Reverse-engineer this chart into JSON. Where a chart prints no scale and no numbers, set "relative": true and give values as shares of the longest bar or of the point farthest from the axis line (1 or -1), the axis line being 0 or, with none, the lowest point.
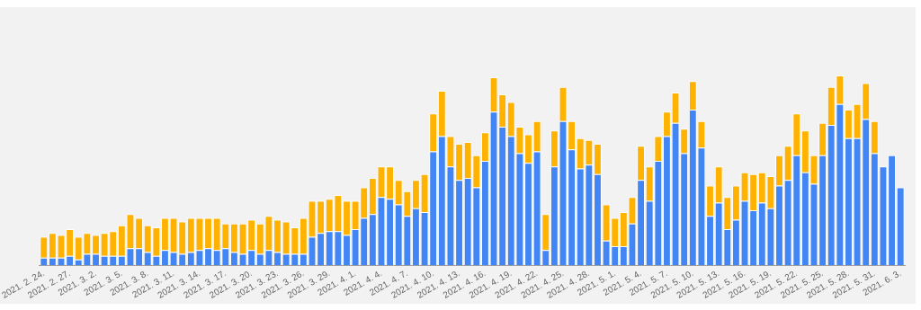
{
  "chart_data": {
    "type": "bar",
    "stacked": true,
    "relative": true,
    "grid": false,
    "legend": false,
    "categories": [
      "2021. 2. 24.",
      null,
      null,
      "2021. 2. 27.",
      null,
      null,
      "2021. 3. 2.",
      null,
      null,
      "2021. 3. 5.",
      null,
      null,
      "2021. 3. 8.",
      null,
      null,
      "2021. 3. 11.",
      null,
      null,
      "2021. 3. 14.",
      null,
      null,
      "2021. 3. 17.",
      null,
      null,
      "2021. 3. 20.",
      null,
      null,
      "2021. 3. 23.",
      null,
      null,
      "2021. 3. 26.",
      null,
      null,
      "2021. 3. 29.",
      null,
      null,
      "2021. 4. 1.",
      null,
      null,
      "2021. 4. 4.",
      null,
      null,
      "2021. 4. 7.",
      null,
      null,
      "2021. 4. 10.",
      null,
      null,
      "2021. 4. 13.",
      null,
      null,
      "2021. 4. 16.",
      null,
      null,
      "2021. 4. 19.",
      null,
      null,
      "2021. 4. 22.",
      null,
      null,
      "2021. 4. 25.",
      null,
      null,
      "2021. 4. 28.",
      null,
      null,
      "2021. 5. 1.",
      null,
      null,
      "2021. 5. 4.",
      null,
      null,
      "2021. 5. 7.",
      null,
      null,
      "2021. 5. 10.",
      null,
      null,
      "2021. 5. 13.",
      null,
      null,
      "2021. 5. 16.",
      null,
      null,
      "2021. 5. 19.",
      null,
      null,
      "2021. 5. 22.",
      null,
      null,
      "2021. 5. 25.",
      null,
      null,
      "2021. 5. 28.",
      null,
      null,
      "2021. 5. 31.",
      null,
      null,
      "2021. 6. 3."
    ],
    "series": [
      {
        "color": "#4285f4",
        "values": [
          0.04,
          0.04,
          0.04,
          0.05,
          0.03,
          0.06,
          0.06,
          0.05,
          0.05,
          0.05,
          0.09,
          0.09,
          0.07,
          0.05,
          0.08,
          0.07,
          0.06,
          0.07,
          0.08,
          0.09,
          0.08,
          0.09,
          0.07,
          0.06,
          0.08,
          0.06,
          0.08,
          0.07,
          0.06,
          0.06,
          0.06,
          0.15,
          0.17,
          0.18,
          0.18,
          0.16,
          0.19,
          0.25,
          0.27,
          0.36,
          0.35,
          0.32,
          0.26,
          0.3,
          0.28,
          0.6,
          0.68,
          0.52,
          0.45,
          0.46,
          0.41,
          0.55,
          0.81,
          0.73,
          0.68,
          0.59,
          0.54,
          0.6,
          0.08,
          0.52,
          0.76,
          0.61,
          0.51,
          0.53,
          0.48,
          0.13,
          0.1,
          0.1,
          0.22,
          0.45,
          0.34,
          0.55,
          0.68,
          0.75,
          0.59,
          0.82,
          0.62,
          0.26,
          0.33,
          0.19,
          0.24,
          0.34,
          0.29,
          0.33,
          0.3,
          0.42,
          0.45,
          0.58,
          0.49,
          0.43,
          0.58,
          0.74,
          0.85,
          0.67,
          0.67,
          0.77,
          0.59,
          0.52,
          0.58,
          0.41
        ]
      },
      {
        "color": "#ffb300",
        "values": [
          0.11,
          0.13,
          0.12,
          0.14,
          0.12,
          0.11,
          0.1,
          0.12,
          0.13,
          0.16,
          0.18,
          0.16,
          0.14,
          0.15,
          0.17,
          0.18,
          0.17,
          0.18,
          0.17,
          0.16,
          0.17,
          0.13,
          0.15,
          0.16,
          0.16,
          0.16,
          0.18,
          0.17,
          0.17,
          0.14,
          0.19,
          0.19,
          0.17,
          0.17,
          0.19,
          0.18,
          0.15,
          0.16,
          0.19,
          0.16,
          0.17,
          0.13,
          0.13,
          0.15,
          0.2,
          0.2,
          0.24,
          0.16,
          0.19,
          0.19,
          0.17,
          0.15,
          0.18,
          0.17,
          0.18,
          0.14,
          0.15,
          0.16,
          0.19,
          0.19,
          0.18,
          0.15,
          0.16,
          0.13,
          0.16,
          0.19,
          0.15,
          0.18,
          0.14,
          0.18,
          0.18,
          0.13,
          0.13,
          0.16,
          0.13,
          0.15,
          0.14,
          0.16,
          0.19,
          0.17,
          0.18,
          0.15,
          0.19,
          0.16,
          0.17,
          0.16,
          0.18,
          0.22,
          0.22,
          0.15,
          0.17,
          0.2,
          0.15,
          0.15,
          0.18,
          0.19,
          0.17,
          null,
          null,
          null
        ]
      }
    ]
  }
}
